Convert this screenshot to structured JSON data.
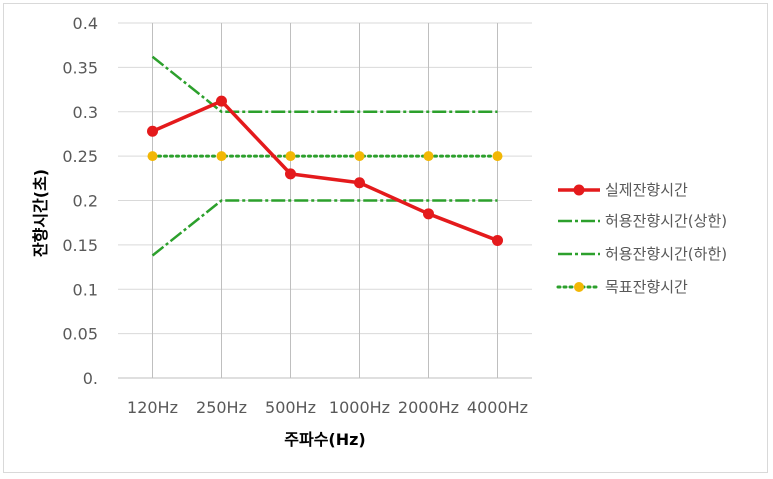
{
  "chart_data": {
    "type": "line",
    "categories": [
      "120Hz",
      "250Hz",
      "500Hz",
      "1000Hz",
      "2000Hz",
      "4000Hz"
    ],
    "xlabel": "주파수(Hz)",
    "ylabel": "잔향시간(초)",
    "ylim": [
      0,
      0.4
    ],
    "yticks": [
      0,
      0.05,
      0.1,
      0.15,
      0.2,
      0.25,
      0.3,
      0.35,
      0.4
    ],
    "ytick_labels": [
      "0.",
      "0.05",
      "0.1",
      "0.15",
      "0.2",
      "0.25",
      "0.3",
      "0.35",
      "0.4"
    ],
    "grid": true,
    "legend_position": "right",
    "series": [
      {
        "name": "실제잔향시간",
        "values": [
          0.278,
          0.312,
          0.23,
          0.22,
          0.185,
          0.155
        ],
        "color": "#e41a1c",
        "style": "solid-markers"
      },
      {
        "name": "허용잔향시간(상한)",
        "values": [
          0.362,
          0.3,
          0.3,
          0.3,
          0.3,
          0.3
        ],
        "color": "#2ca02c",
        "style": "dashdot"
      },
      {
        "name": "허용잔향시간(하한)",
        "values": [
          0.138,
          0.2,
          0.2,
          0.2,
          0.2,
          0.2
        ],
        "color": "#2ca02c",
        "style": "dashdot"
      },
      {
        "name": "목표잔향시간",
        "values": [
          0.25,
          0.25,
          0.25,
          0.25,
          0.25,
          0.25
        ],
        "color": "#2ca02c",
        "marker_color": "#f2b705",
        "style": "dotted-markers"
      }
    ]
  }
}
